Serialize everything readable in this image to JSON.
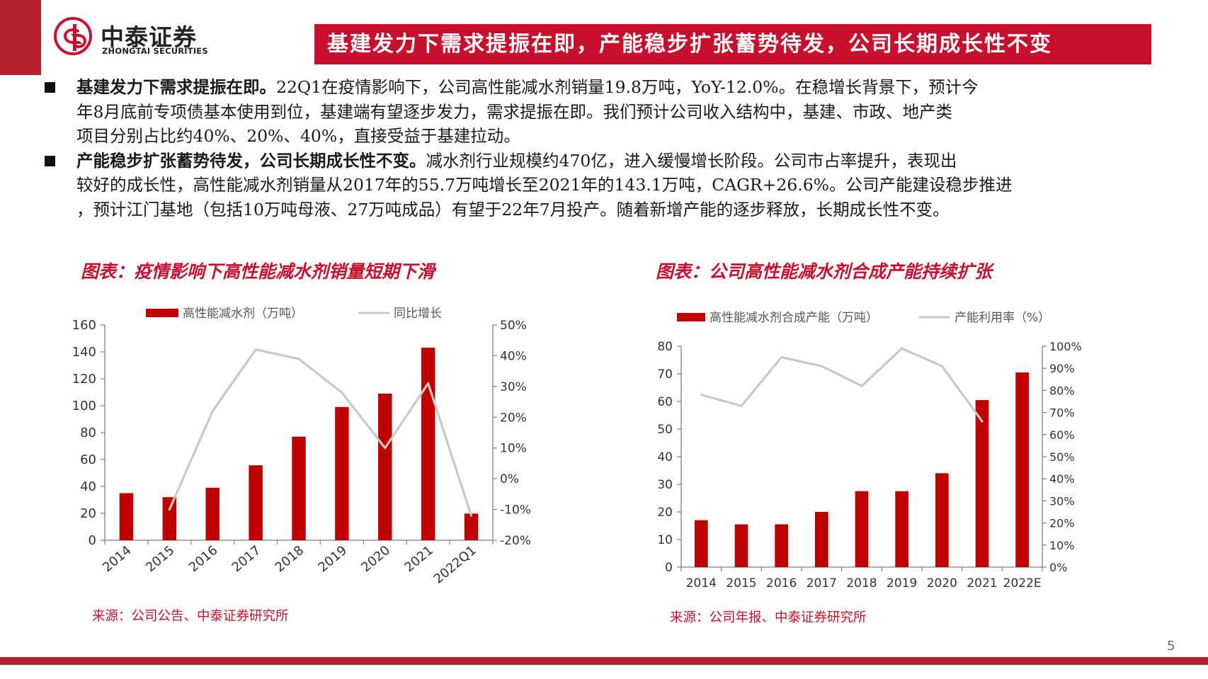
{
  "logo": {
    "cn": "中泰证券",
    "en": "ZHONGTAI SECURITIES"
  },
  "slide_title": "基建发力下需求提振在即，产能稳步扩张蓄势待发，公司长期成长性不变",
  "bullets": [
    {
      "lead": "基建发力下需求提振在即。",
      "lines": [
        "22Q1在疫情影响下，公司高性能减水剂销量19.8万吨，YoY-12.0%。在稳增长背景下，预计今",
        "年8月底前专项债基本使用到位，基建端有望逐步发力，需求提振在即。我们预计公司收入结构中，基建、市政、地产类",
        "项目分别占比约40%、20%、40%，直接受益于基建拉动。"
      ]
    },
    {
      "lead": "产能稳步扩张蓄势待发，公司长期成长性不变。",
      "lines": [
        "减水剂行业规模约470亿，进入缓慢增长阶段。公司市占率提升，表现出",
        "较好的成长性，高性能减水剂销量从2017年的55.7万吨增长至2021年的143.1万吨，CAGR+26.6%。公司产能建设稳步推进",
        "，预计江门基地（包括10万吨母液、27万吨成品）有望于22年7月投产。随着新增产能的逐步释放，长期成长性不变。"
      ]
    }
  ],
  "chart1_title": "图表：疫情影响下高性能减水剂销量短期下滑",
  "chart1_source": "来源：公司公告、中泰证券研究所",
  "chart2_title": "图表：公司高性能减水剂合成产能持续扩张",
  "chart2_source": "来源：公司年报、中泰证券研究所",
  "page_number": "5",
  "colors": {
    "brand_red": "#c8102e",
    "bar_red": "#c00000",
    "line_gray": "#c8c8c8"
  },
  "chart_data": [
    {
      "type": "bar",
      "categories": [
        "2014",
        "2015",
        "2016",
        "2017",
        "2018",
        "2019",
        "2020",
        "2021",
        "2022Q1"
      ],
      "series": [
        {
          "name": "高性能减水剂（万吨）",
          "type": "bar",
          "axis": "left",
          "values": [
            35,
            32,
            39,
            55.7,
            77,
            99,
            109,
            143.1,
            19.8
          ]
        },
        {
          "name": "同比增长",
          "type": "line",
          "axis": "right",
          "values": [
            null,
            -0.1,
            0.22,
            0.42,
            0.39,
            0.28,
            0.1,
            0.31,
            -0.12
          ]
        }
      ],
      "y_left": {
        "min": 0,
        "max": 160,
        "ticks": [
          "0",
          "20",
          "40",
          "60",
          "80",
          "100",
          "120",
          "140",
          "160"
        ]
      },
      "y_right": {
        "min": -0.2,
        "max": 0.5,
        "ticks": [
          "-20%",
          "-10%",
          "0%",
          "10%",
          "20%",
          "30%",
          "40%",
          "50%"
        ]
      },
      "legend": "top",
      "grid": false
    },
    {
      "type": "bar",
      "categories": [
        "2014",
        "2015",
        "2016",
        "2017",
        "2018",
        "2019",
        "2020",
        "2021",
        "2022E"
      ],
      "series": [
        {
          "name": "高性能减水剂合成产能（万吨）",
          "type": "bar",
          "axis": "left",
          "values": [
            17,
            15.5,
            15.5,
            20,
            27.5,
            27.5,
            34,
            60.5,
            70.5
          ]
        },
        {
          "name": "产能利用率（%）",
          "type": "line",
          "axis": "right",
          "values": [
            0.78,
            0.73,
            0.95,
            0.91,
            0.82,
            0.99,
            0.91,
            0.66,
            null
          ]
        }
      ],
      "y_left": {
        "min": 0,
        "max": 80,
        "ticks": [
          "0",
          "10",
          "20",
          "30",
          "40",
          "50",
          "60",
          "70",
          "80"
        ]
      },
      "y_right": {
        "min": 0,
        "max": 1.0,
        "ticks": [
          "0%",
          "10%",
          "20%",
          "30%",
          "40%",
          "50%",
          "60%",
          "70%",
          "80%",
          "90%",
          "100%"
        ]
      },
      "legend": "top",
      "grid": false
    }
  ]
}
